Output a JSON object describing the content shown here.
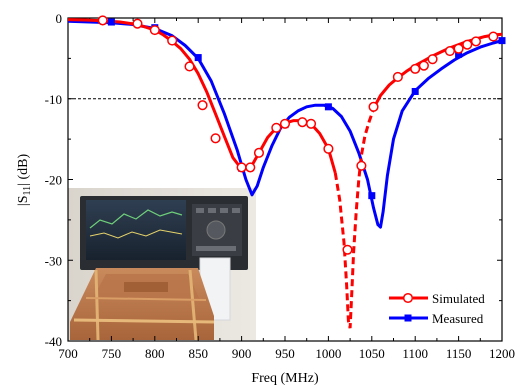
{
  "chart_data": {
    "type": "line",
    "title": "",
    "xlabel": "Freq (MHz)",
    "ylabel_main": "|S",
    "ylabel_sub": "11",
    "ylabel_tail": "| (dB)",
    "xlim": [
      700,
      1200
    ],
    "ylim": [
      -40,
      0
    ],
    "xticks": [
      700,
      750,
      800,
      850,
      900,
      950,
      1000,
      1050,
      1100,
      1150,
      1200
    ],
    "yticks": [
      0,
      -10,
      -20,
      -30,
      -40
    ],
    "xtick_labels": [
      "700",
      "750",
      "800",
      "850",
      "900",
      "950",
      "1000",
      "1050",
      "1100",
      "1150",
      "1200"
    ],
    "ytick_labels": [
      "0",
      "-10",
      "-20",
      "-30",
      "-40"
    ],
    "reference_line": {
      "y": -10,
      "style": "dashed"
    },
    "grid": false,
    "legend_position": "bottom-right",
    "inset": "photo of antenna prototype connected to a network analyzer",
    "series": [
      {
        "name": "Simulated",
        "color": "#ff0000",
        "marker": "open-circle",
        "solid_points": [
          [
            700,
            -0.2
          ],
          [
            720,
            -0.25
          ],
          [
            740,
            -0.35
          ],
          [
            760,
            -0.5
          ],
          [
            780,
            -0.8
          ],
          [
            800,
            -1.5
          ],
          [
            810,
            -2.1
          ],
          [
            820,
            -2.9
          ],
          [
            830,
            -3.8
          ],
          [
            840,
            -5.1
          ],
          [
            850,
            -6.9
          ],
          [
            860,
            -9.2
          ],
          [
            870,
            -11.9
          ],
          [
            880,
            -14.6
          ],
          [
            890,
            -17.3
          ],
          [
            900,
            -18.7
          ],
          [
            910,
            -18.6
          ],
          [
            920,
            -16.7
          ],
          [
            930,
            -14.8
          ],
          [
            940,
            -13.6
          ],
          [
            950,
            -13.0
          ],
          [
            960,
            -12.7
          ],
          [
            970,
            -12.7
          ],
          [
            980,
            -13.1
          ],
          [
            990,
            -14.3
          ],
          [
            1000,
            -16.2
          ],
          [
            1008,
            -19.2
          ]
        ],
        "dashed_points": [
          [
            1008,
            -19.2
          ],
          [
            1013,
            -22.5
          ],
          [
            1018,
            -27.8
          ],
          [
            1021,
            -33.0
          ],
          [
            1023,
            -37.5
          ],
          [
            1025,
            -38.4
          ],
          [
            1027,
            -34.0
          ],
          [
            1029,
            -29.0
          ],
          [
            1032,
            -24.0
          ],
          [
            1035,
            -20.0
          ],
          [
            1038,
            -17.0
          ],
          [
            1042,
            -14.6
          ],
          [
            1047,
            -12.8
          ],
          [
            1053,
            -11.0
          ]
        ],
        "tail_points": [
          [
            1053,
            -11.0
          ],
          [
            1060,
            -9.6
          ],
          [
            1070,
            -8.3
          ],
          [
            1080,
            -7.4
          ],
          [
            1090,
            -6.6
          ],
          [
            1100,
            -5.9
          ],
          [
            1110,
            -5.3
          ],
          [
            1120,
            -4.7
          ],
          [
            1130,
            -4.2
          ],
          [
            1140,
            -3.7
          ],
          [
            1150,
            -3.3
          ],
          [
            1160,
            -2.9
          ],
          [
            1170,
            -2.6
          ],
          [
            1180,
            -2.3
          ],
          [
            1190,
            -2.1
          ],
          [
            1200,
            -2.0
          ]
        ],
        "marker_points": [
          [
            740,
            -0.3
          ],
          [
            780,
            -0.7
          ],
          [
            800,
            -1.5
          ],
          [
            820,
            -2.8
          ],
          [
            840,
            -6.0
          ],
          [
            855,
            -10.8
          ],
          [
            870,
            -14.9
          ],
          [
            900,
            -18.5
          ],
          [
            910,
            -18.5
          ],
          [
            920,
            -16.7
          ],
          [
            940,
            -13.6
          ],
          [
            950,
            -13.1
          ],
          [
            970,
            -12.9
          ],
          [
            980,
            -13.1
          ],
          [
            1000,
            -16.2
          ],
          [
            1022,
            -28.7
          ],
          [
            1038,
            -18.3
          ],
          [
            1052,
            -11.0
          ],
          [
            1080,
            -7.3
          ],
          [
            1100,
            -6.3
          ],
          [
            1110,
            -5.9
          ],
          [
            1120,
            -5.1
          ],
          [
            1140,
            -4.1
          ],
          [
            1150,
            -3.8
          ],
          [
            1160,
            -3.3
          ],
          [
            1170,
            -2.9
          ],
          [
            1190,
            -2.3
          ]
        ]
      },
      {
        "name": "Measured",
        "color": "#0000ff",
        "marker": "filled-square",
        "points": [
          [
            700,
            -0.4
          ],
          [
            725,
            -0.5
          ],
          [
            750,
            -0.6
          ],
          [
            775,
            -0.8
          ],
          [
            800,
            -1.3
          ],
          [
            820,
            -2.2
          ],
          [
            835,
            -3.4
          ],
          [
            850,
            -5.0
          ],
          [
            865,
            -7.8
          ],
          [
            880,
            -11.8
          ],
          [
            895,
            -16.4
          ],
          [
            905,
            -20.0
          ],
          [
            912,
            -21.9
          ],
          [
            918,
            -20.8
          ],
          [
            925,
            -18.5
          ],
          [
            935,
            -15.8
          ],
          [
            945,
            -13.6
          ],
          [
            955,
            -12.3
          ],
          [
            965,
            -11.5
          ],
          [
            975,
            -11.0
          ],
          [
            985,
            -10.8
          ],
          [
            995,
            -10.8
          ],
          [
            1005,
            -11.2
          ],
          [
            1015,
            -12.2
          ],
          [
            1025,
            -14.0
          ],
          [
            1035,
            -16.7
          ],
          [
            1045,
            -20.0
          ],
          [
            1052,
            -23.5
          ],
          [
            1057,
            -25.6
          ],
          [
            1060,
            -25.9
          ],
          [
            1063,
            -24.0
          ],
          [
            1068,
            -19.5
          ],
          [
            1075,
            -15.0
          ],
          [
            1085,
            -11.5
          ],
          [
            1100,
            -9.0
          ],
          [
            1115,
            -7.5
          ],
          [
            1130,
            -6.3
          ],
          [
            1145,
            -5.2
          ],
          [
            1160,
            -4.3
          ],
          [
            1175,
            -3.6
          ],
          [
            1190,
            -3.1
          ],
          [
            1200,
            -2.8
          ]
        ],
        "marker_points": [
          [
            750,
            -0.5
          ],
          [
            800,
            -1.2
          ],
          [
            850,
            -4.9
          ],
          [
            900,
            -18.6
          ],
          [
            950,
            -13.2
          ],
          [
            1000,
            -11.0
          ],
          [
            1050,
            -22.0
          ],
          [
            1100,
            -9.1
          ],
          [
            1150,
            -4.5
          ],
          [
            1200,
            -2.8
          ]
        ]
      }
    ]
  }
}
